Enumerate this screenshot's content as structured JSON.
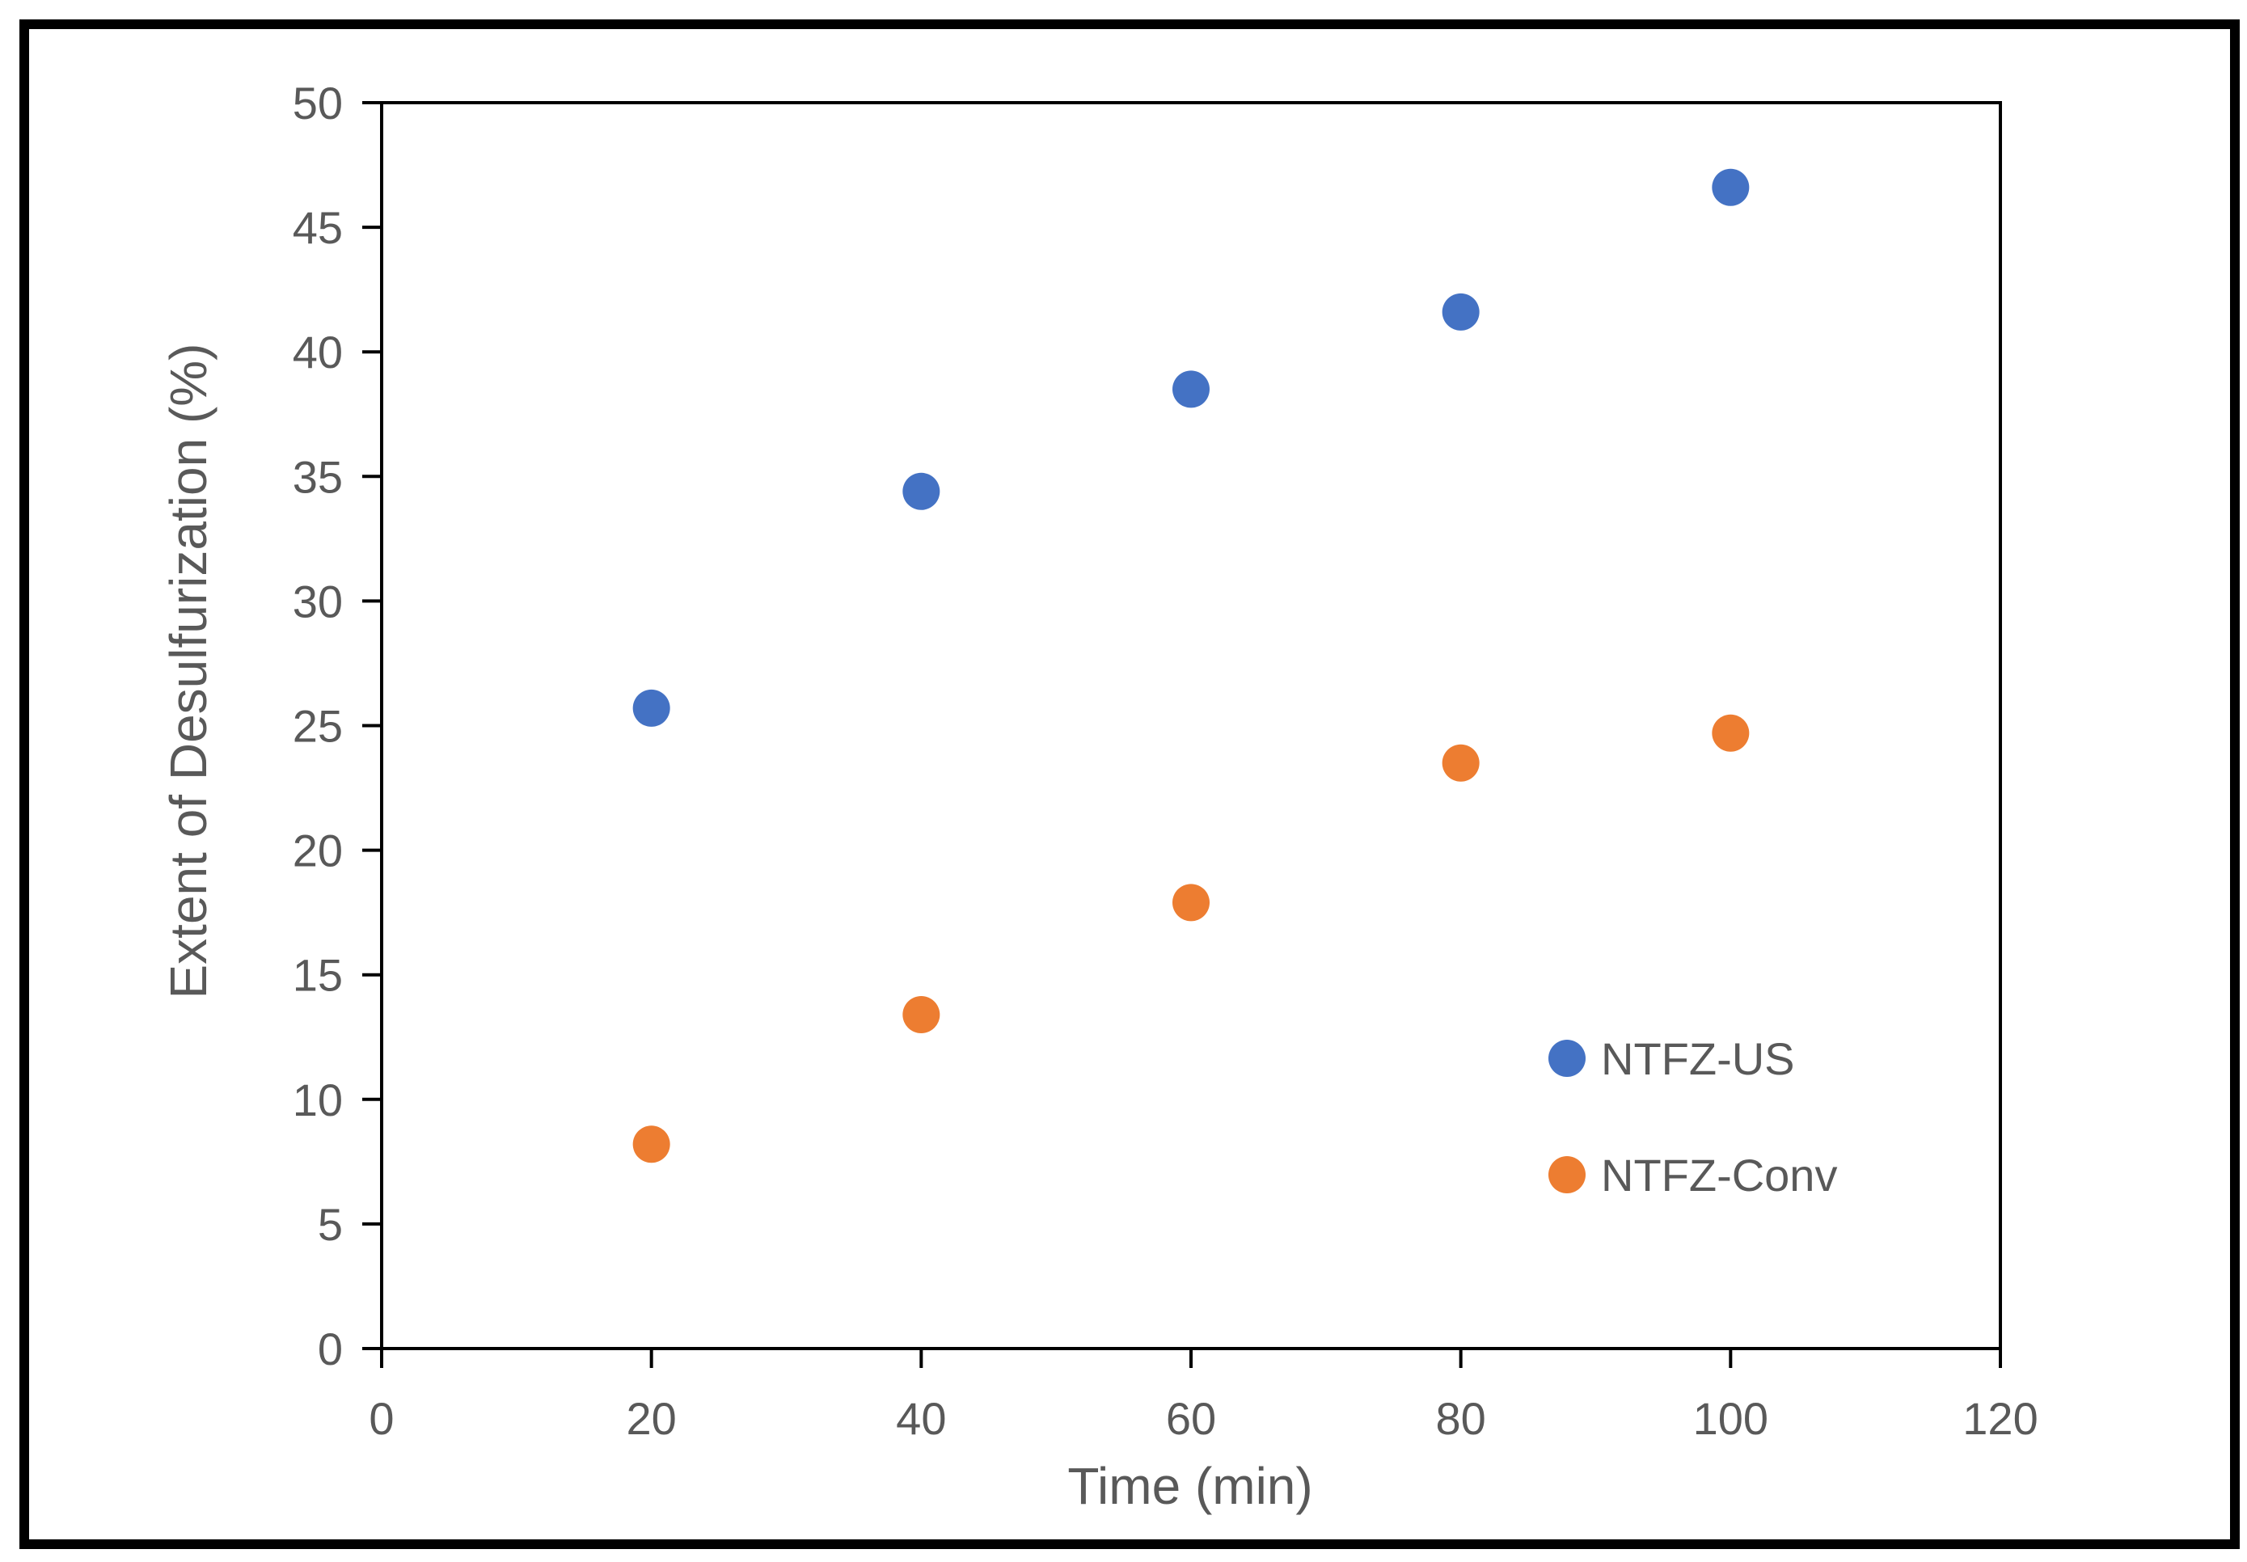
{
  "chart_data": {
    "type": "scatter",
    "title": "",
    "xlabel": "Time (min)",
    "ylabel": "Extent of Desulfurization (%)",
    "xlim": [
      0,
      120
    ],
    "ylim": [
      0,
      50
    ],
    "xticks": [
      "0",
      "20",
      "40",
      "60",
      "80",
      "100",
      "120"
    ],
    "yticks": [
      "0",
      "5",
      "10",
      "15",
      "20",
      "25",
      "30",
      "35",
      "40",
      "45",
      "50"
    ],
    "grid": false,
    "legend_position": "right",
    "series": [
      {
        "name": "NTFZ-US",
        "color": "#4472C4",
        "x": [
          20,
          40,
          60,
          80,
          100
        ],
        "y": [
          25.7,
          34.4,
          38.5,
          41.6,
          46.6
        ]
      },
      {
        "name": "NTFZ-Conv",
        "color": "#ED7D31",
        "x": [
          20,
          40,
          60,
          80,
          100
        ],
        "y": [
          8.2,
          13.4,
          17.9,
          23.5,
          24.7
        ]
      }
    ]
  }
}
